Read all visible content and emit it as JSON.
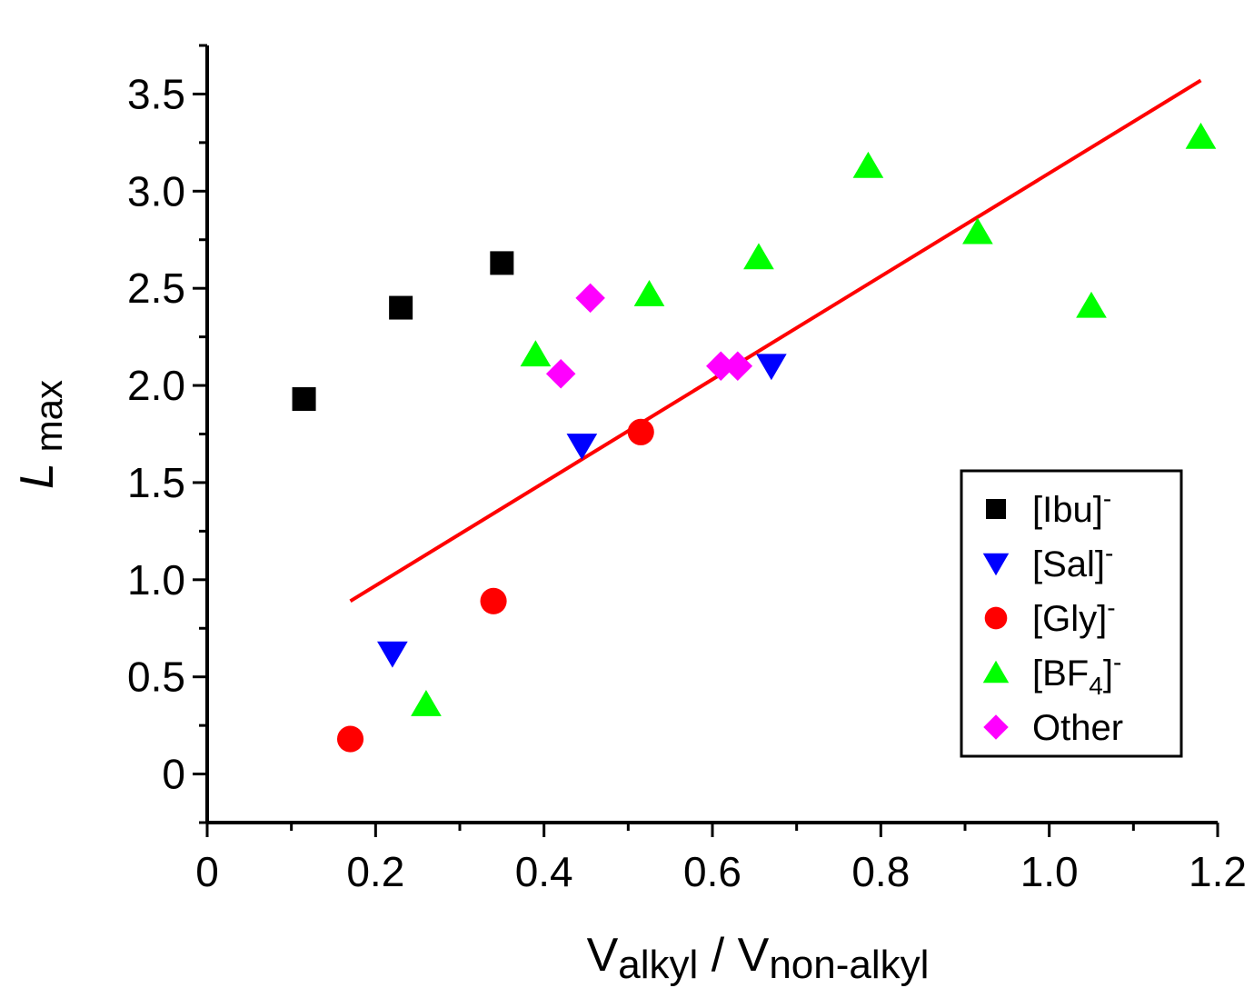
{
  "chart_data": {
    "type": "scatter",
    "title": "",
    "xlabel": {
      "main": "V",
      "sub1": "alkyl",
      "sep": " / V",
      "sub2": "non-alkyl"
    },
    "ylabel": {
      "main": "L",
      "sub": "max"
    },
    "xlim": [
      0,
      1.2
    ],
    "ylim": [
      -0.25,
      3.75
    ],
    "xticks": [
      0,
      0.2,
      0.4,
      0.6,
      0.8,
      1.0,
      1.2
    ],
    "xtick_labels": [
      "0",
      "0.2",
      "0.4",
      "0.6",
      "0.8",
      "1.0",
      "1.2"
    ],
    "yticks": [
      0,
      0.5,
      1.0,
      1.5,
      2.0,
      2.5,
      3.0,
      3.5
    ],
    "ytick_labels": [
      "0",
      "0.5",
      "1.0",
      "1.5",
      "2.0",
      "2.5",
      "3.0",
      "3.5"
    ],
    "grid": false,
    "legend_position": "bottom-right",
    "series": [
      {
        "name": "[Ibu]",
        "sup": "-",
        "marker": "square",
        "color": "#000000",
        "points": [
          [
            0.115,
            1.93
          ],
          [
            0.23,
            2.4
          ],
          [
            0.35,
            2.63
          ]
        ]
      },
      {
        "name": "[Sal]",
        "sup": "-",
        "marker": "triangle-down",
        "color": "#0000ff",
        "points": [
          [
            0.22,
            0.62
          ],
          [
            0.445,
            1.69
          ],
          [
            0.67,
            2.1
          ]
        ]
      },
      {
        "name": "[Gly]",
        "sup": "-",
        "marker": "circle",
        "color": "#ff0000",
        "points": [
          [
            0.17,
            0.18
          ],
          [
            0.34,
            0.89
          ],
          [
            0.515,
            1.76
          ]
        ]
      },
      {
        "name": "[BF",
        "sub": "4",
        "close": "]",
        "sup": "-",
        "marker": "triangle-up",
        "color": "#00ff00",
        "points": [
          [
            0.26,
            0.36
          ],
          [
            0.39,
            2.16
          ],
          [
            0.525,
            2.47
          ],
          [
            0.655,
            2.66
          ],
          [
            0.785,
            3.13
          ],
          [
            0.915,
            2.79
          ],
          [
            1.05,
            2.41
          ],
          [
            1.18,
            3.28
          ]
        ]
      },
      {
        "name": "Other",
        "marker": "diamond",
        "color": "#ff00ff",
        "points": [
          [
            0.42,
            2.06
          ],
          [
            0.455,
            2.45
          ],
          [
            0.61,
            2.1
          ],
          [
            0.63,
            2.1
          ]
        ]
      }
    ],
    "fit_line": {
      "color": "#ff0000",
      "x": [
        0.17,
        1.18
      ],
      "y": [
        0.89,
        3.57
      ]
    }
  }
}
